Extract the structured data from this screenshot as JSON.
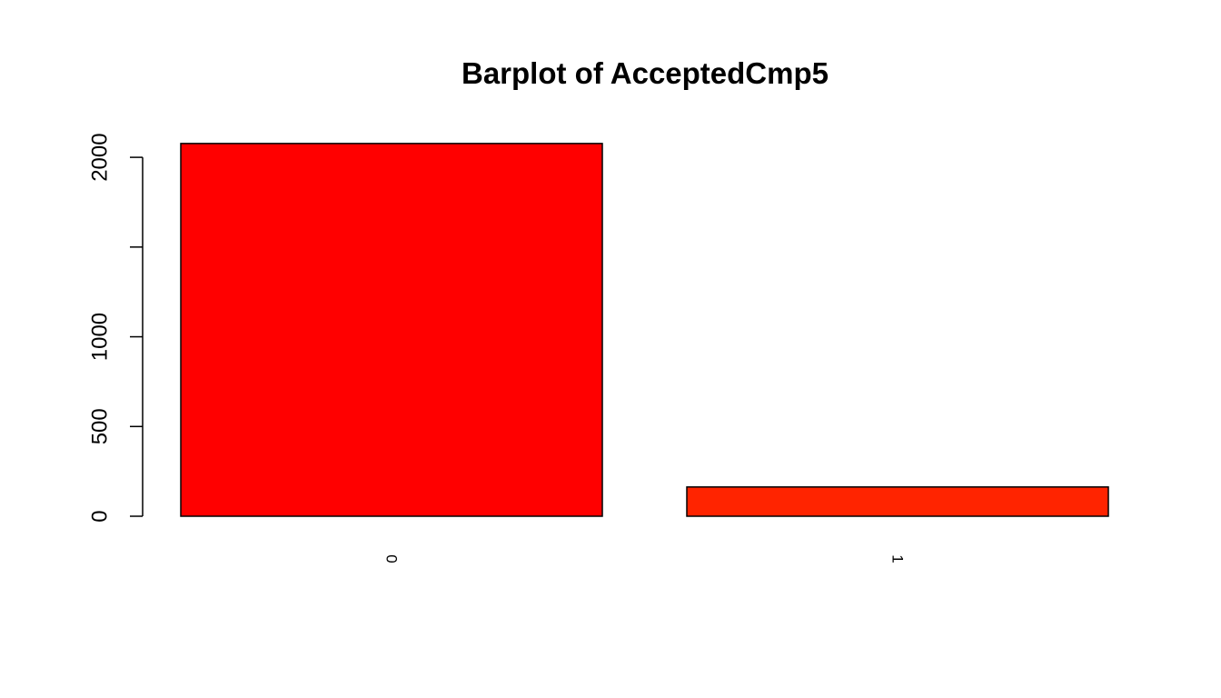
{
  "chart_data": {
    "type": "bar",
    "title": "Barplot of AcceptedCmp5",
    "xlabel": "",
    "ylabel": "",
    "categories": [
      "0",
      "1"
    ],
    "values": [
      2077,
      163
    ],
    "bar_colors": [
      "#ff0000",
      "#ff2400"
    ],
    "ylim": [
      0,
      2077
    ],
    "y_ticks": [
      0,
      500,
      1000,
      1500,
      2000
    ],
    "y_tick_labels": [
      "0",
      "500",
      "1000",
      "",
      "2000"
    ],
    "x_tick_label_orientation": "vertical",
    "grid": false,
    "legend": "none"
  }
}
